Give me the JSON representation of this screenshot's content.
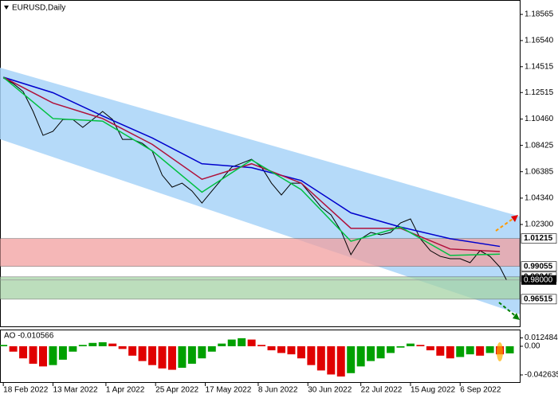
{
  "chart_data": [
    {
      "type": "line",
      "title": "EURUSD,Daily",
      "xlim": [
        -1,
        156
      ],
      "ylim": [
        0.9441,
        1.1968
      ],
      "xticks": [
        {
          "value": 0,
          "label": "18 Feb 2022"
        },
        {
          "value": 15,
          "label": "13 Mar 2022"
        },
        {
          "value": 31,
          "label": "1 Apr 2022"
        },
        {
          "value": 46,
          "label": "25 Apr 2022"
        },
        {
          "value": 61,
          "label": "17 May 2022"
        },
        {
          "value": 77,
          "label": "8 Jun 2022"
        },
        {
          "value": 92,
          "label": "30 Jun 2022"
        },
        {
          "value": 108,
          "label": "22 Jul 2022"
        },
        {
          "value": 123,
          "label": "15 Aug 2022"
        },
        {
          "value": 138,
          "label": "6 Sep 2022"
        }
      ],
      "yticks": [
        1.18565,
        {
          "value": 1.1654,
          "label": "1.16540"
        },
        1.14515,
        1.12515,
        {
          "value": 1.1046,
          "label": "1.10460"
        },
        1.08425,
        1.06385,
        {
          "value": 1.0434,
          "label": "1.04340"
        },
        {
          "value": 1.023,
          "label": "1.02300"
        }
      ],
      "channel": {
        "color": "#a8d4f8",
        "x": [
          -1,
          156
        ],
        "upper": [
          1.1444,
          1.0292
        ],
        "lower": [
          1.089,
          0.9534
        ]
      },
      "zones": [
        {
          "color": "#f2a0a0",
          "range": [
            0.99055,
            1.01215
          ]
        },
        {
          "color": "#a6d4a6",
          "range": [
            0.96515,
            0.98245
          ]
        }
      ],
      "levels": [
        1.01215,
        0.99055,
        0.98245,
        0.96515
      ],
      "current_price": {
        "value": 0.98,
        "label": "0.98000"
      },
      "series": [
        {
          "color": "#000000",
          "x": [
            0,
            3,
            6,
            9,
            12,
            15,
            18,
            21,
            24,
            27,
            30,
            33,
            36,
            39,
            42,
            45,
            48,
            51,
            54,
            57,
            60,
            63,
            66,
            69,
            72,
            75,
            78,
            81,
            84,
            87,
            90,
            93,
            96,
            99,
            102,
            105,
            108,
            111,
            114,
            117,
            120,
            123,
            126,
            129,
            132,
            135,
            138,
            141,
            144,
            147,
            150,
            152
          ],
          "values": [
            1.1364,
            1.1321,
            1.1259,
            1.1105,
            1.092,
            1.0951,
            1.1043,
            1.1043,
            1.0982,
            1.1043,
            1.1105,
            1.1043,
            1.0889,
            1.0889,
            1.0858,
            1.0797,
            1.0612,
            1.0519,
            1.055,
            1.0489,
            1.0396,
            1.0489,
            1.0581,
            1.0674,
            1.0704,
            1.0735,
            1.0674,
            1.055,
            1.0458,
            1.055,
            1.055,
            1.0458,
            1.0365,
            1.0304,
            1.0181,
            0.9996,
            1.0119,
            1.0168,
            1.015,
            1.0168,
            1.0242,
            1.0273,
            1.0119,
            1.0027,
            0.9983,
            0.9965,
            0.9965,
            0.9934,
            1.0027,
            0.9983,
            0.99,
            0.98
          ]
        },
        {
          "color": "#0000cc",
          "x": [
            0,
            15,
            30,
            45,
            60,
            75,
            90,
            105,
            120,
            135,
            150
          ],
          "values": [
            1.137,
            1.125,
            1.107,
            1.09,
            1.07,
            1.067,
            1.057,
            1.032,
            1.021,
            1.012,
            1.006
          ]
        },
        {
          "color": "#b0103a",
          "x": [
            0,
            15,
            30,
            45,
            60,
            75,
            90,
            105,
            120,
            135,
            150
          ],
          "values": [
            1.137,
            1.117,
            1.105,
            1.085,
            1.058,
            1.07,
            1.055,
            1.02,
            1.02,
            1.004,
            1.002
          ]
        },
        {
          "color": "#00c040",
          "x": [
            0,
            15,
            30,
            45,
            60,
            75,
            90,
            105,
            120,
            135,
            150
          ],
          "values": [
            1.137,
            1.105,
            1.103,
            1.08,
            1.048,
            1.073,
            1.05,
            1.01,
            1.021,
            0.999,
            1.0
          ]
        }
      ]
    },
    {
      "type": "bar",
      "title": "AO -0.010566",
      "up_color": "#00a000",
      "down_color": "#e00000",
      "ylim": [
        -0.0533,
        0.0237
      ],
      "yticks": [
        0.012484,
        {
          "value": 0,
          "label": "0.00"
        },
        -0.042635
      ],
      "x": [
        0,
        3,
        6,
        9,
        12,
        15,
        18,
        21,
        24,
        27,
        30,
        33,
        36,
        39,
        42,
        45,
        48,
        51,
        54,
        57,
        60,
        63,
        66,
        69,
        72,
        75,
        78,
        81,
        84,
        87,
        90,
        93,
        96,
        99,
        102,
        105,
        108,
        111,
        114,
        117,
        120,
        123,
        126,
        129,
        132,
        135,
        138,
        141,
        144,
        147,
        150,
        153
      ],
      "values": [
        0.002,
        -0.008,
        -0.018,
        -0.026,
        -0.03,
        -0.028,
        -0.02,
        -0.008,
        0.002,
        0.005,
        0.006,
        0.004,
        -0.004,
        -0.014,
        -0.022,
        -0.028,
        -0.033,
        -0.035,
        -0.032,
        -0.026,
        -0.018,
        -0.008,
        0.004,
        0.01,
        0.012,
        0.01,
        0.002,
        -0.006,
        -0.01,
        -0.012,
        -0.018,
        -0.028,
        -0.036,
        -0.042,
        -0.045,
        -0.04,
        -0.03,
        -0.022,
        -0.018,
        -0.01,
        -0.002,
        0.004,
        0.002,
        -0.006,
        -0.014,
        -0.018,
        -0.016,
        -0.012,
        -0.014,
        -0.01,
        -0.012,
        -0.010566
      ]
    }
  ]
}
